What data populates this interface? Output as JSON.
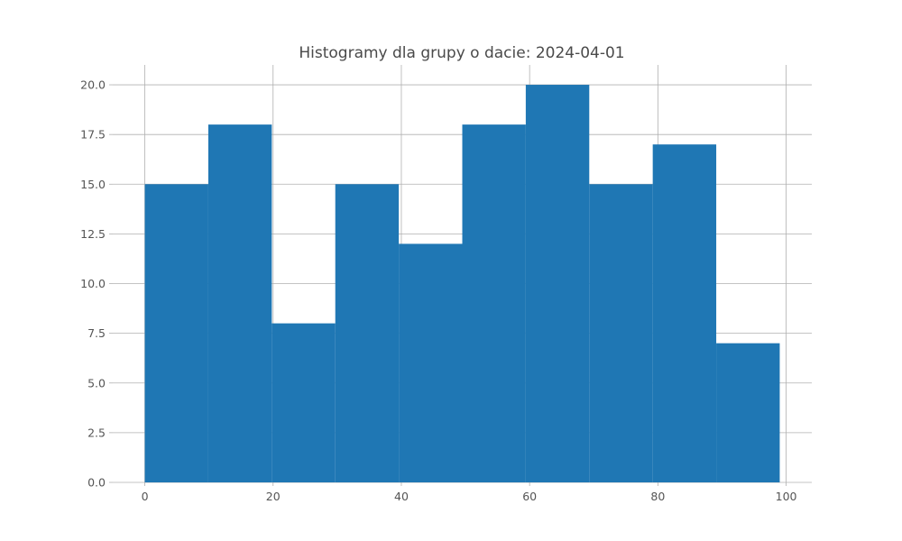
{
  "chart_data": {
    "type": "bar",
    "title": "Histogramy dla grupy o dacie: 2024-04-01",
    "xlabel": "",
    "ylabel": "",
    "bin_edges": [
      0,
      9.9,
      19.8,
      29.7,
      39.6,
      49.5,
      59.4,
      69.3,
      79.2,
      89.1,
      99
    ],
    "values": [
      15,
      18,
      8,
      15,
      12,
      18,
      20,
      15,
      17,
      7
    ],
    "xlim": [
      -5,
      104
    ],
    "ylim": [
      0,
      21
    ],
    "xticks": [
      0,
      20,
      40,
      60,
      80,
      100
    ],
    "xtick_labels": [
      "0",
      "20",
      "40",
      "60",
      "80",
      "100"
    ],
    "yticks": [
      0,
      2.5,
      5,
      7.5,
      10,
      12.5,
      15,
      17.5,
      20
    ],
    "ytick_labels": [
      "0.0",
      "2.5",
      "5.0",
      "7.5",
      "10.0",
      "12.5",
      "15.0",
      "17.5",
      "20.0"
    ],
    "grid": true,
    "bar_color": "#1f77b4",
    "grid_color": "#b0b0b0"
  }
}
